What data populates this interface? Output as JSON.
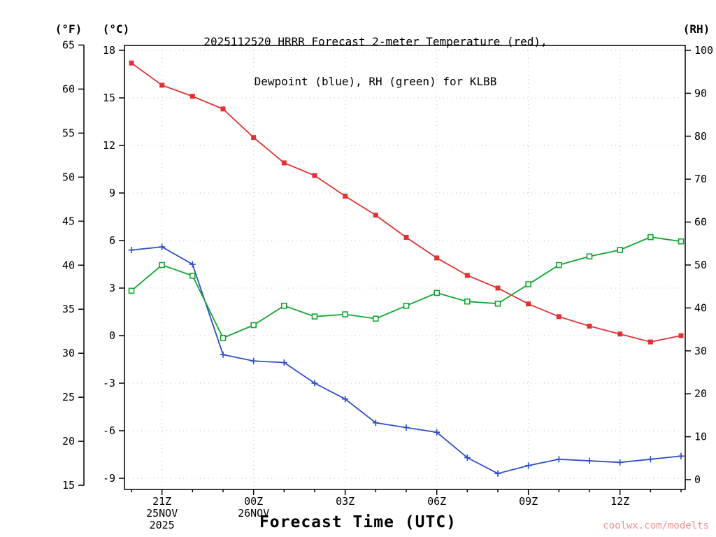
{
  "title": {
    "line1": "2025112520 HRRR Forecast 2-meter Temperature (red),",
    "line2": "Dewpoint (blue), RH (green) for KLBB"
  },
  "axis_units": {
    "left_f": "(°F)",
    "left_c": "(°C)",
    "right_rh": "(RH)"
  },
  "xaxis": {
    "title": "Forecast Time (UTC)"
  },
  "watermark": "coolwx.com/modelts",
  "colors": {
    "temperature": "#e03232",
    "dewpoint": "#3050c0",
    "rh": "#10a52e",
    "grid": "#c0c0c0",
    "axis": "#000000",
    "watermark": "#f09090"
  },
  "chart_data": {
    "type": "line",
    "x_hours": [
      "20Z",
      "21Z",
      "22Z",
      "23Z",
      "00Z",
      "01Z",
      "02Z",
      "03Z",
      "04Z",
      "05Z",
      "06Z",
      "07Z",
      "08Z",
      "09Z",
      "10Z",
      "11Z",
      "12Z",
      "13Z",
      "14Z"
    ],
    "major_ticks": [
      {
        "i": 1,
        "label": "21Z"
      },
      {
        "i": 4,
        "label": "00Z"
      },
      {
        "i": 7,
        "label": "03Z"
      },
      {
        "i": 10,
        "label": "06Z"
      },
      {
        "i": 13,
        "label": "09Z"
      },
      {
        "i": 16,
        "label": "12Z"
      }
    ],
    "date_annotations": [
      {
        "i": 1,
        "lines": [
          "25NOV",
          "2025"
        ]
      },
      {
        "i": 4,
        "lines": [
          "26NOV"
        ]
      }
    ],
    "c_axis": {
      "label": "(°C)",
      "ticks": [
        18,
        15,
        12,
        9,
        6,
        3,
        0,
        -3,
        -6,
        -9
      ],
      "range": [
        -9,
        18
      ]
    },
    "f_axis": {
      "label": "(°F)",
      "ticks": [
        65,
        60,
        55,
        50,
        45,
        40,
        35,
        30,
        25,
        20,
        15
      ],
      "range": [
        15,
        65
      ]
    },
    "rh_axis": {
      "label": "(RH)",
      "ticks": [
        100,
        90,
        80,
        70,
        60,
        50,
        40,
        30,
        20,
        10,
        0
      ],
      "range": [
        0,
        100
      ]
    },
    "grid": true,
    "legend": "in-title",
    "series": [
      {
        "id": "temperature",
        "name": "2-meter Temperature (red)",
        "unit": "°C",
        "axis": "c",
        "color": "#e03232",
        "marker": "filled-square",
        "values": [
          17.2,
          15.8,
          15.1,
          14.3,
          12.5,
          10.9,
          10.1,
          8.8,
          7.6,
          6.2,
          4.9,
          3.8,
          3.0,
          2.0,
          1.2,
          0.6,
          0.1,
          -0.4,
          0.0
        ]
      },
      {
        "id": "dewpoint",
        "name": "Dewpoint (blue)",
        "unit": "°C",
        "axis": "c",
        "color": "#3050c0",
        "marker": "plus",
        "values": [
          5.4,
          5.6,
          4.5,
          -1.2,
          -1.6,
          -1.7,
          -3.0,
          -4.0,
          -5.5,
          -5.8,
          -6.1,
          -7.7,
          -8.7,
          -8.2,
          -7.8,
          -7.9,
          -8.0,
          -7.8,
          -7.6
        ]
      },
      {
        "id": "rh",
        "name": "RH (green)",
        "unit": "%",
        "axis": "rh",
        "color": "#10a52e",
        "marker": "open-square",
        "values": [
          44,
          50,
          47.5,
          33,
          36,
          40.5,
          38,
          38.5,
          37.5,
          40.5,
          43.5,
          41.5,
          41,
          45.5,
          50,
          52,
          53.5,
          56.5,
          55.5
        ]
      }
    ]
  }
}
